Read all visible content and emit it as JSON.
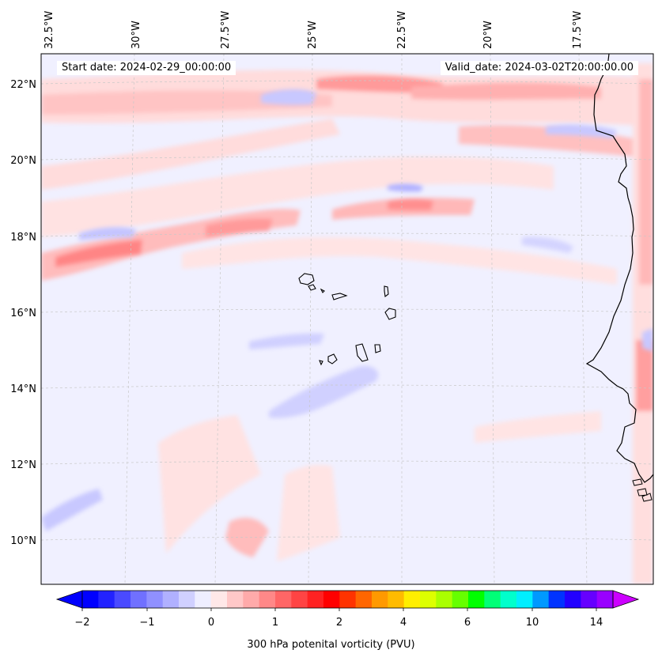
{
  "start_date_text": "Start date: 2024-02-29_00:00:00",
  "valid_date_text": "Valid_date: 2024-03-02T20:00:00.00",
  "longitude_labels": [
    "32.5°W",
    "30°W",
    "27.5°W",
    "25°W",
    "22.5°W",
    "20°W",
    "17.5°W"
  ],
  "latitude_labels": [
    "22°N",
    "20°N",
    "18°N",
    "16°N",
    "14°N",
    "12°N",
    "10°N"
  ],
  "colorbar": {
    "label": "300 hPa potenital vorticity (PVU)",
    "tick_labels": [
      "−2",
      "−1",
      "0",
      "1",
      "2",
      "4",
      "6",
      "10",
      "14"
    ],
    "colors": [
      "#0000ff",
      "#2222ff",
      "#4a4aff",
      "#7070ff",
      "#9090ff",
      "#b0b0ff",
      "#d0d0ff",
      "#eeeeff",
      "#ffe8e8",
      "#ffc8c8",
      "#ffaaaa",
      "#ff8888",
      "#ff6666",
      "#ff4444",
      "#ff2222",
      "#ff0000",
      "#ff3300",
      "#ff6600",
      "#ff9900",
      "#ffbb00",
      "#ffee00",
      "#ddff00",
      "#aaff00",
      "#66ff00",
      "#00ff00",
      "#00ff77",
      "#00ffcc",
      "#00eeff",
      "#0099ff",
      "#0033ff",
      "#2200ff",
      "#6600ff",
      "#9900ff"
    ],
    "under_color": "#0000ff",
    "over_color": "#cc00ff"
  },
  "map": {
    "background_color": "#f0f0ff",
    "coastline_color": "#000000",
    "grid_color": "#c8c8c8"
  }
}
